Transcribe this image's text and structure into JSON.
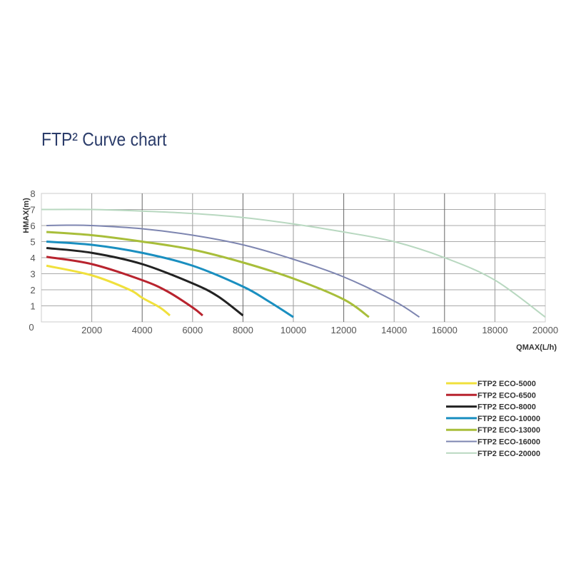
{
  "chart_data": {
    "type": "line",
    "title": "FTP² Curve chart",
    "xlabel": "QMAX(L/h)",
    "ylabel": "HMAX(m)",
    "xlim": [
      0,
      20000
    ],
    "ylim": [
      0,
      8
    ],
    "xticks": [
      2000,
      4000,
      6000,
      8000,
      10000,
      12000,
      14000,
      16000,
      18000,
      20000
    ],
    "yticks": [
      0,
      1,
      2,
      3,
      4,
      5,
      6,
      7,
      8
    ],
    "grid": true,
    "legend": "bottom-right",
    "series": [
      {
        "name": "FTP2 ECO-5000",
        "color": "#f0e03c",
        "x": [
          200,
          2000,
          3500,
          4000,
          4700,
          5100
        ],
        "y": [
          3.5,
          2.9,
          2.0,
          1.5,
          0.9,
          0.4
        ]
      },
      {
        "name": "FTP2 ECO-6500",
        "color": "#b8232e",
        "x": [
          200,
          2000,
          4000,
          5000,
          6000,
          6400
        ],
        "y": [
          4.05,
          3.6,
          2.6,
          1.9,
          0.9,
          0.4
        ]
      },
      {
        "name": "FTP2 ECO-8000",
        "color": "#222222",
        "x": [
          200,
          2000,
          4000,
          6000,
          7000,
          8000
        ],
        "y": [
          4.6,
          4.3,
          3.6,
          2.4,
          1.6,
          0.4
        ]
      },
      {
        "name": "FTP2 ECO-10000",
        "color": "#1a8fc0",
        "x": [
          200,
          2000,
          4000,
          6000,
          8000,
          9000,
          10000
        ],
        "y": [
          5.0,
          4.8,
          4.3,
          3.5,
          2.2,
          1.3,
          0.3
        ]
      },
      {
        "name": "FTP2 ECO-13000",
        "color": "#a8be3a",
        "x": [
          200,
          2000,
          4000,
          6000,
          8000,
          10000,
          12000,
          13000
        ],
        "y": [
          5.6,
          5.4,
          5.0,
          4.5,
          3.7,
          2.7,
          1.4,
          0.3
        ]
      },
      {
        "name": "FTP2 ECO-16000",
        "color": "#7d85b0",
        "x": [
          200,
          1000,
          2000,
          4000,
          6000,
          8000,
          10000,
          12000,
          14000,
          15000
        ],
        "y": [
          6.0,
          6.02,
          6.0,
          5.8,
          5.4,
          4.8,
          3.9,
          2.8,
          1.3,
          0.3
        ]
      },
      {
        "name": "FTP2 ECO-20000",
        "color": "#b8d8c0",
        "x": [
          0,
          2000,
          4000,
          6000,
          8000,
          10000,
          12000,
          14000,
          16000,
          18000,
          20000
        ],
        "y": [
          7.0,
          7.0,
          6.9,
          6.75,
          6.5,
          6.1,
          5.6,
          5.0,
          4.0,
          2.6,
          0.3
        ]
      }
    ]
  }
}
